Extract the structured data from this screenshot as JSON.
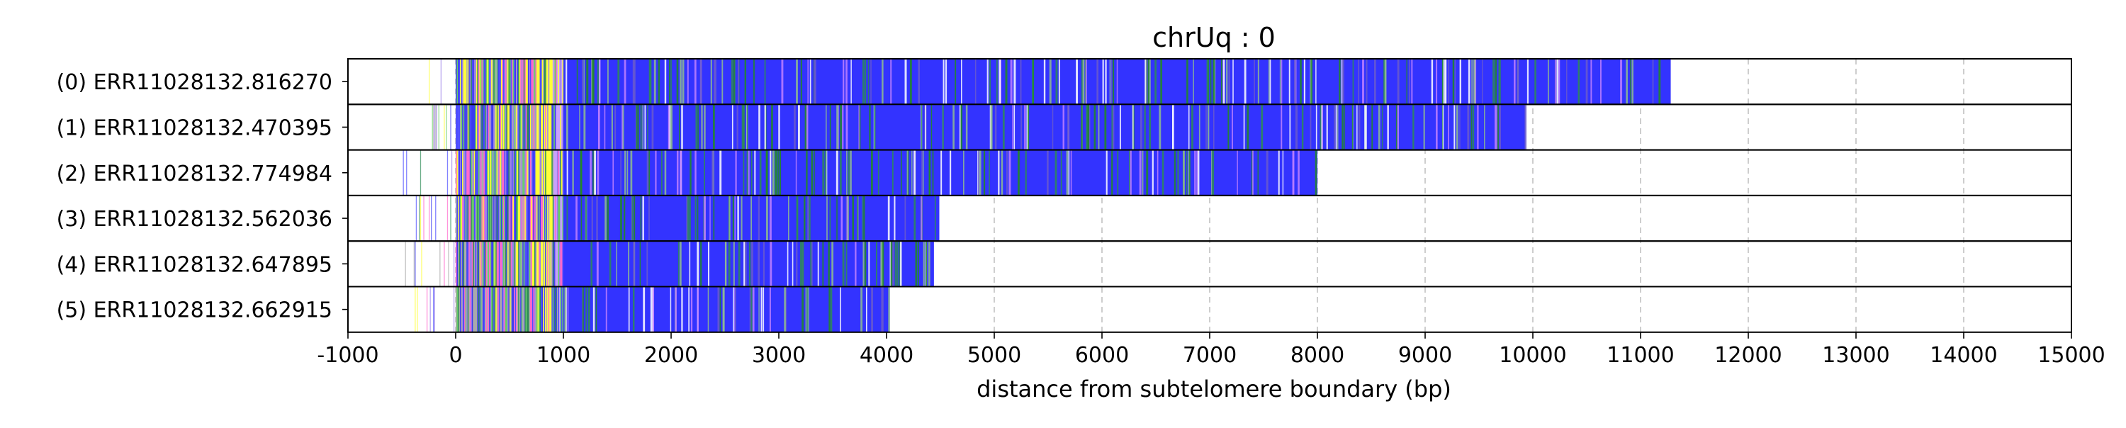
{
  "chart_data": {
    "type": "bar",
    "orientation": "horizontal",
    "title": "chrUq : 0",
    "xlabel": "distance from subtelomere boundary (bp)",
    "ylabel": "",
    "xlim": [
      -1000,
      15000
    ],
    "xticks": [
      -1000,
      0,
      1000,
      2000,
      3000,
      4000,
      5000,
      6000,
      7000,
      8000,
      9000,
      10000,
      11000,
      12000,
      13000,
      14000,
      15000
    ],
    "grid": "vertical dashed",
    "dominant_color": "#3333ff",
    "telomere_region_start": 1000,
    "reads": [
      {
        "label": "(0) ERR11028132.816270",
        "start": -450,
        "end": 11280
      },
      {
        "label": "(1) ERR11028132.470395",
        "start": -420,
        "end": 9930
      },
      {
        "label": "(2) ERR11028132.774984",
        "start": -500,
        "end": 8000
      },
      {
        "label": "(3) ERR11028132.562036",
        "start": -430,
        "end": 4490
      },
      {
        "label": "(4) ERR11028132.647895",
        "start": -480,
        "end": 4440
      },
      {
        "label": "(5) ERR11028132.662915",
        "start": -440,
        "end": 4030
      }
    ]
  }
}
